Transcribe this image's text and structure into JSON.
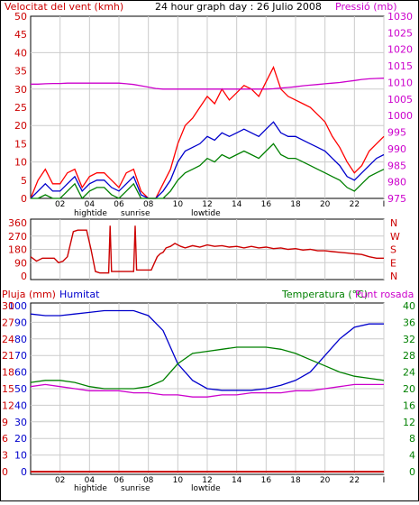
{
  "header": {
    "left_title": "Velocitat del vent (kmh)",
    "center_title": "24 hour graph day : 26 Julio 2008",
    "right_title": "Pressió (mb)"
  },
  "colors": {
    "wind_gust": "#ff0000",
    "wind_avg": "#0000cc",
    "wind_min": "#008000",
    "pressure": "#cc00cc",
    "direction": "#cc0000",
    "humidity": "#0000cc",
    "temperature": "#008000",
    "dewpoint": "#cc00cc",
    "rain": "#cc0000",
    "text_red": "#cc0000",
    "text_blue": "#0000cc",
    "text_green": "#008000",
    "text_magenta": "#cc00cc",
    "background": "#ffffff",
    "frame": "#000000"
  },
  "axis_x": {
    "ticks": [
      "02",
      "04",
      "06",
      "08",
      "10",
      "12",
      "14",
      "16",
      "18",
      "20",
      "22",
      "I"
    ],
    "tide_labels": [
      "hightide",
      "sunrise",
      "lowtide"
    ]
  },
  "panel_direction": {
    "left_ticks": [
      "360",
      "270",
      "180",
      "90",
      "0"
    ],
    "compass": [
      "N",
      "W",
      "S",
      "E",
      "N"
    ]
  },
  "panel_bottom": {
    "left_title": "Pluja (mm)",
    "humidity_title": "Humitat",
    "temp_title": "Temperatura (°C)",
    "dew_title": "Punt rosada",
    "humidity_ticks": [
      "100",
      "90",
      "80",
      "70",
      "60",
      "50",
      "40",
      "30",
      "20",
      "10",
      "0"
    ],
    "rain_ticks": [
      "30",
      "27",
      "24",
      "21",
      "18",
      "15",
      "12",
      "9",
      "6",
      "3",
      "0"
    ],
    "temp_ticks": [
      "40",
      "36",
      "32",
      "28",
      "24",
      "20",
      "16",
      "12",
      "8",
      "4",
      "0"
    ]
  },
  "chart_data": [
    {
      "type": "line",
      "title": "24 hour graph day : 26 Julio 2008",
      "ylabel": "Velocitat del vent (kmh)",
      "ylabel_right": "Pressió (mb)",
      "x_ticks": [
        "02",
        "04",
        "06",
        "08",
        "10",
        "12",
        "14",
        "16",
        "18",
        "20",
        "22",
        "I"
      ],
      "ylim": [
        0,
        50
      ],
      "ylim_right": [
        975,
        1030
      ],
      "y_ticks": [
        "50",
        "45",
        "40",
        "35",
        "30",
        "25",
        "20",
        "15",
        "10",
        "5",
        "0"
      ],
      "y_ticks_right": [
        "1030",
        "1025",
        "1020",
        "1015",
        "1010",
        "1005",
        "1000",
        "995",
        "990",
        "985",
        "980",
        "975"
      ],
      "grid": true,
      "hours": [
        0,
        0.5,
        1,
        1.5,
        2,
        2.5,
        3,
        3.5,
        4,
        4.5,
        5,
        5.5,
        6,
        6.5,
        7,
        7.5,
        8,
        8.5,
        9,
        9.5,
        10,
        10.5,
        11,
        11.5,
        12,
        12.5,
        13,
        13.5,
        14,
        14.5,
        15,
        15.5,
        16,
        16.5,
        17,
        17.5,
        18,
        18.5,
        19,
        19.5,
        20,
        20.5,
        21,
        21.5,
        22,
        22.5,
        23,
        23.5,
        24
      ],
      "series": [
        {
          "key": "gust",
          "values": [
            0,
            5,
            8,
            4,
            4,
            7,
            8,
            3,
            6,
            7,
            7,
            5,
            3,
            7,
            8,
            2,
            0,
            0,
            4,
            8,
            15,
            20,
            22,
            25,
            28,
            26,
            30,
            27,
            29,
            31,
            30,
            28,
            32,
            36,
            30,
            28,
            27,
            26,
            25,
            23,
            21,
            17,
            14,
            10,
            7,
            9,
            13,
            15,
            17
          ]
        },
        {
          "key": "avg",
          "values": [
            0,
            2,
            4,
            2,
            2,
            4,
            6,
            2,
            4,
            5,
            5,
            3,
            2,
            4,
            6,
            1,
            0,
            0,
            2,
            5,
            10,
            13,
            14,
            15,
            17,
            16,
            18,
            17,
            18,
            19,
            18,
            17,
            19,
            21,
            18,
            17,
            17,
            16,
            15,
            14,
            13,
            11,
            9,
            6,
            5,
            7,
            9,
            11,
            12
          ]
        },
        {
          "key": "min",
          "values": [
            0,
            0,
            1,
            0,
            0,
            2,
            4,
            0,
            2,
            3,
            3,
            1,
            0,
            2,
            4,
            0,
            0,
            0,
            0,
            2,
            5,
            7,
            8,
            9,
            11,
            10,
            12,
            11,
            12,
            13,
            12,
            11,
            13,
            15,
            12,
            11,
            11,
            10,
            9,
            8,
            7,
            6,
            5,
            3,
            2,
            4,
            6,
            7,
            8
          ]
        },
        {
          "key": "pressure",
          "values": [
            1009.5,
            1009.5,
            1009.6,
            1009.7,
            1009.7,
            1009.8,
            1009.8,
            1009.8,
            1009.8,
            1009.8,
            1009.8,
            1009.8,
            1009.8,
            1009.6,
            1009.4,
            1009.0,
            1008.6,
            1008.2,
            1008.0,
            1008.0,
            1008.0,
            1008.0,
            1008.0,
            1008.0,
            1008.0,
            1008.0,
            1008.0,
            1008.0,
            1008.0,
            1008.0,
            1008.0,
            1008.0,
            1008.0,
            1008.1,
            1008.3,
            1008.5,
            1008.7,
            1009.0,
            1009.2,
            1009.4,
            1009.6,
            1009.8,
            1010.0,
            1010.3,
            1010.6,
            1010.9,
            1011.1,
            1011.2,
            1011.3
          ]
        }
      ]
    },
    {
      "type": "line",
      "title": "",
      "ylabel": "",
      "x_ticks": [],
      "ylim": [
        0,
        360
      ],
      "y_ticks": [
        "360",
        "270",
        "180",
        "90",
        "0"
      ],
      "compass": [
        "N",
        "W",
        "S",
        "E",
        "N"
      ],
      "grid": true,
      "points": [
        [
          0,
          130
        ],
        [
          0.4,
          100
        ],
        [
          0.8,
          120
        ],
        [
          1.6,
          120
        ],
        [
          1.9,
          90
        ],
        [
          2.2,
          100
        ],
        [
          2.5,
          130
        ],
        [
          2.9,
          300
        ],
        [
          3.2,
          310
        ],
        [
          3.8,
          310
        ],
        [
          4.1,
          180
        ],
        [
          4.4,
          30
        ],
        [
          4.7,
          20
        ],
        [
          5.3,
          20
        ],
        [
          5.4,
          340
        ],
        [
          5.5,
          30
        ],
        [
          6.5,
          30
        ],
        [
          7.0,
          30
        ],
        [
          7.1,
          340
        ],
        [
          7.2,
          40
        ],
        [
          7.6,
          40
        ],
        [
          8.2,
          40
        ],
        [
          8.6,
          130
        ],
        [
          8.8,
          150
        ],
        [
          9.0,
          160
        ],
        [
          9.2,
          190
        ],
        [
          9.5,
          200
        ],
        [
          9.8,
          220
        ],
        [
          10.2,
          200
        ],
        [
          10.5,
          190
        ],
        [
          11,
          205
        ],
        [
          11.5,
          195
        ],
        [
          12,
          210
        ],
        [
          12.5,
          200
        ],
        [
          13,
          205
        ],
        [
          13.5,
          195
        ],
        [
          14,
          200
        ],
        [
          14.5,
          190
        ],
        [
          15,
          200
        ],
        [
          15.5,
          190
        ],
        [
          16,
          195
        ],
        [
          16.5,
          185
        ],
        [
          17,
          190
        ],
        [
          17.5,
          180
        ],
        [
          18,
          185
        ],
        [
          18.5,
          175
        ],
        [
          19,
          180
        ],
        [
          19.5,
          170
        ],
        [
          20,
          170
        ],
        [
          20.5,
          165
        ],
        [
          21,
          160
        ],
        [
          21.5,
          155
        ],
        [
          22,
          150
        ],
        [
          22.5,
          145
        ],
        [
          23,
          130
        ],
        [
          23.5,
          120
        ],
        [
          24,
          120
        ]
      ]
    },
    {
      "type": "line",
      "title": "",
      "ylabel": "Pluja (mm)",
      "ylabel_right": "Temperatura (°C)",
      "x_ticks": [
        "02",
        "04",
        "06",
        "08",
        "10",
        "12",
        "14",
        "16",
        "18",
        "20",
        "22",
        "I"
      ],
      "ylim": [
        0,
        100
      ],
      "ylim_rain": [
        0,
        30
      ],
      "ylim_temp": [
        0,
        40
      ],
      "grid": true,
      "hours": [
        0,
        1,
        2,
        3,
        4,
        5,
        6,
        7,
        8,
        9,
        10,
        11,
        12,
        13,
        14,
        15,
        16,
        17,
        18,
        19,
        20,
        21,
        22,
        23,
        24
      ],
      "series": [
        {
          "key": "humidity",
          "name": "Humitat",
          "values": [
            95,
            94,
            94,
            95,
            96,
            97,
            97,
            97,
            94,
            85,
            65,
            55,
            50,
            49,
            49,
            49,
            50,
            52,
            55,
            60,
            70,
            80,
            87,
            89,
            89
          ]
        },
        {
          "key": "temperature",
          "name": "Temperatura (°C)",
          "values": [
            21.5,
            22,
            22,
            21.5,
            20.5,
            20,
            20,
            20,
            20.5,
            22,
            26,
            28.5,
            29,
            29.5,
            30,
            30,
            30,
            29.5,
            28.5,
            27,
            25.5,
            24,
            23,
            22.5,
            22
          ]
        },
        {
          "key": "dewpoint",
          "name": "Punt rosada",
          "values": [
            20.5,
            21,
            20.5,
            20,
            19.5,
            19.5,
            19.5,
            19,
            19,
            18.5,
            18.5,
            18,
            18,
            18.5,
            18.5,
            19,
            19,
            19,
            19.5,
            19.5,
            20,
            20.5,
            21,
            21,
            21
          ]
        },
        {
          "key": "rain",
          "name": "Pluja (mm)",
          "values": [
            0,
            0,
            0,
            0,
            0,
            0,
            0,
            0,
            0,
            0,
            0,
            0,
            0,
            0,
            0,
            0,
            0,
            0,
            0,
            0,
            0,
            0,
            0,
            0,
            0
          ]
        }
      ]
    }
  ]
}
